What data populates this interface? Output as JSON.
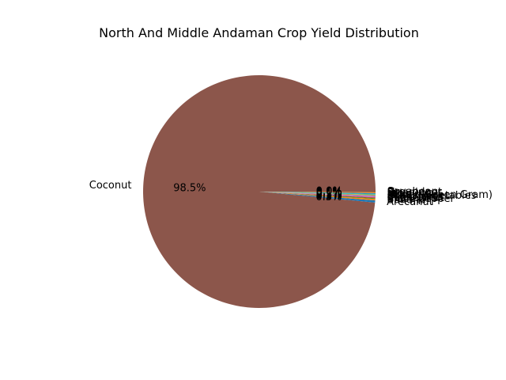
{
  "chart_data": {
    "type": "pie",
    "title": "North And Middle Andaman Crop Yield Distribution",
    "slices": [
      {
        "label": "Coconut",
        "percent": 98.5,
        "pct_text": "98.5%",
        "color": "#8c564b"
      },
      {
        "label": "Arecanut",
        "percent": 0.3,
        "pct_text": "0.3%",
        "color": "#1f77b4"
      },
      {
        "label": "Banana",
        "percent": 0.2,
        "pct_text": "0.2%",
        "color": "#ff7f0e"
      },
      {
        "label": "Black pepper",
        "percent": 0.1,
        "pct_text": "0.1%",
        "color": "#2ca02c"
      },
      {
        "label": "Cashewnut",
        "percent": 0.1,
        "pct_text": "0.1%",
        "color": "#d62728"
      },
      {
        "label": "Sugarcane",
        "percent": 0.1,
        "pct_text": "0.1%",
        "color": "#9467bd"
      },
      {
        "label": "Dry chillies",
        "percent": 0.1,
        "pct_text": "0.1%",
        "color": "#e377c2"
      },
      {
        "label": "Other Vegetables",
        "percent": 0.1,
        "pct_text": "0.1%",
        "color": "#7f7f7f"
      },
      {
        "label": "Moong(Green Gram)",
        "percent": 0.1,
        "pct_text": "0.1%",
        "color": "#bcbd22"
      },
      {
        "label": "Urad",
        "percent": 0.1,
        "pct_text": "0.1%",
        "color": "#17becf"
      },
      {
        "label": "Rice",
        "percent": 0.1,
        "pct_text": "0.1%",
        "color": "#1f77b4"
      },
      {
        "label": "Dry ginger",
        "percent": 0.1,
        "pct_text": "0.1%",
        "color": "#ff7f0e"
      },
      {
        "label": "Groundnut",
        "percent": 0.05,
        "pct_text": "0.0%",
        "color": "#2ca02c"
      },
      {
        "label": "Soyabean",
        "percent": 0.05,
        "pct_text": "0.0%",
        "color": "#d62728"
      }
    ],
    "start_angle_deg": 0,
    "direction": "counterclockwise",
    "legend": "none"
  }
}
